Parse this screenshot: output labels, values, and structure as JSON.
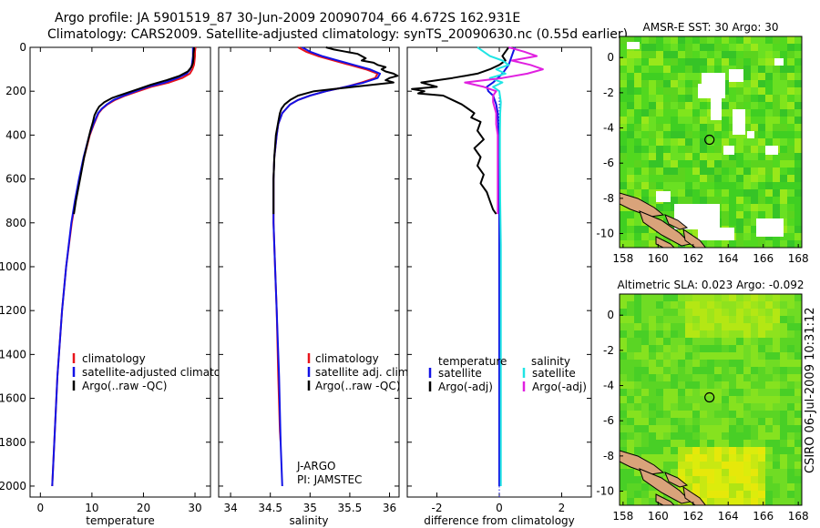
{
  "header": {
    "title_line1": "Argo profile: JA 5901519_87 30-Jun-2009 20090704_66 4.672S 162.931E",
    "title_line2": "Climatology: CARS2009. Satellite-adjusted climatology: synTS_20090630.nc (0.55d earlier)"
  },
  "footer": {
    "stamp": "CSIRO 06-Jul-2009 10:31:12"
  },
  "colors": {
    "climatology": "#e8141b",
    "satellite": "#1212e6",
    "argo": "#000000",
    "cyan": "#20e4e4",
    "magenta": "#e020e0",
    "land": "#d9a37a"
  },
  "chart_data": [
    {
      "type": "line",
      "id": "temperature",
      "xlabel": "temperature",
      "xticks": [
        0,
        10,
        20,
        30
      ],
      "xlim": [
        -2,
        33
      ],
      "yticks": [
        0,
        200,
        400,
        600,
        800,
        1000,
        1200,
        1400,
        1600,
        1800,
        2000
      ],
      "ylim": [
        2050,
        0
      ],
      "legend": [
        "climatology",
        "satellite-adjusted climatology",
        "Argo(..raw -QC)"
      ],
      "series": [
        {
          "name": "climatology",
          "color": "#e8141b",
          "depth": [
            0,
            20,
            40,
            60,
            80,
            100,
            120,
            140,
            160,
            180,
            200,
            220,
            240,
            260,
            280,
            300,
            350,
            400,
            500,
            600,
            700,
            800,
            1000,
            1200,
            1500,
            1800,
            2000
          ],
          "values": [
            30.1,
            30.0,
            30.0,
            29.9,
            29.8,
            29.5,
            29.0,
            27.5,
            25.0,
            21.5,
            19.0,
            16.5,
            14.5,
            13.0,
            12.0,
            11.3,
            10.4,
            9.6,
            8.5,
            7.6,
            6.8,
            6.1,
            5.0,
            4.2,
            3.3,
            2.7,
            2.3
          ]
        },
        {
          "name": "satellite-adjusted climatology",
          "color": "#1212e6",
          "depth": [
            0,
            20,
            40,
            60,
            80,
            100,
            120,
            140,
            160,
            180,
            200,
            220,
            240,
            260,
            280,
            300,
            350,
            400,
            500,
            600,
            700,
            800,
            1000,
            1200,
            1500,
            1800,
            2000
          ],
          "values": [
            29.6,
            29.6,
            29.6,
            29.5,
            29.4,
            29.1,
            28.4,
            26.6,
            24.2,
            20.8,
            18.5,
            16.2,
            14.2,
            12.9,
            11.9,
            11.2,
            10.3,
            9.5,
            8.4,
            7.5,
            6.7,
            6.0,
            5.0,
            4.2,
            3.3,
            2.7,
            2.3
          ]
        },
        {
          "name": "Argo(..raw -QC)",
          "color": "#000000",
          "depth": [
            0,
            10,
            30,
            50,
            70,
            90,
            110,
            130,
            150,
            170,
            190,
            210,
            230,
            250,
            270,
            290,
            310,
            340,
            380,
            420,
            500,
            600,
            700,
            760
          ],
          "values": [
            29.8,
            29.8,
            29.7,
            29.7,
            29.6,
            29.3,
            28.6,
            27.0,
            24.5,
            21.5,
            19.0,
            16.5,
            14.0,
            12.4,
            11.4,
            10.9,
            10.5,
            10.2,
            9.7,
            9.3,
            8.5,
            7.7,
            6.9,
            6.5
          ]
        }
      ]
    },
    {
      "type": "line",
      "id": "salinity",
      "xlabel": "salinity",
      "xticks": [
        34,
        34.5,
        35,
        35.5,
        36
      ],
      "xlim": [
        33.85,
        36.12
      ],
      "ylim": [
        2050,
        0
      ],
      "legend": [
        "climatology",
        "satellite adj. clim.",
        "Argo(..raw -QC)"
      ],
      "annotation": [
        "J-ARGO",
        "PI: JAMSTEC"
      ],
      "series": [
        {
          "name": "climatology",
          "color": "#e8141b",
          "depth": [
            0,
            20,
            40,
            60,
            80,
            100,
            120,
            140,
            160,
            180,
            200,
            220,
            240,
            260,
            280,
            300,
            350,
            400,
            500,
            600,
            700,
            800,
            1000,
            1200,
            1500,
            1750,
            1800
          ],
          "values": [
            34.85,
            34.95,
            35.1,
            35.3,
            35.5,
            35.7,
            35.85,
            35.82,
            35.65,
            35.45,
            35.2,
            35.0,
            34.85,
            34.75,
            34.7,
            34.65,
            34.6,
            34.58,
            34.55,
            34.54,
            34.54,
            34.54,
            34.56,
            34.58,
            34.6,
            34.62,
            34.63
          ]
        },
        {
          "name": "satellite adj. clim.",
          "color": "#1212e6",
          "depth": [
            0,
            20,
            40,
            60,
            80,
            100,
            120,
            140,
            160,
            180,
            200,
            220,
            240,
            260,
            280,
            300,
            350,
            400,
            500,
            600,
            700,
            800,
            1000,
            1200,
            1500,
            1800,
            2000
          ],
          "values": [
            34.9,
            35.0,
            35.15,
            35.35,
            35.55,
            35.75,
            35.88,
            35.85,
            35.68,
            35.45,
            35.2,
            35.0,
            34.85,
            34.75,
            34.7,
            34.65,
            34.6,
            34.58,
            34.55,
            34.54,
            34.54,
            34.54,
            34.56,
            34.58,
            34.61,
            34.63,
            34.65
          ]
        },
        {
          "name": "Argo(..raw -QC)",
          "color": "#000000",
          "depth": [
            0,
            10,
            20,
            30,
            40,
            50,
            60,
            70,
            80,
            90,
            100,
            110,
            120,
            130,
            140,
            150,
            160,
            170,
            180,
            190,
            200,
            220,
            240,
            260,
            280,
            300,
            340,
            400,
            500,
            600,
            700,
            760
          ],
          "values": [
            35.2,
            35.3,
            35.45,
            35.6,
            35.65,
            35.7,
            35.65,
            35.8,
            35.85,
            35.95,
            35.9,
            35.95,
            36.05,
            36.1,
            36.0,
            35.95,
            36.05,
            35.8,
            35.55,
            35.3,
            35.05,
            34.85,
            34.75,
            34.68,
            34.64,
            34.62,
            34.6,
            34.57,
            34.55,
            34.54,
            34.54,
            34.54
          ]
        }
      ]
    },
    {
      "type": "line",
      "id": "difference",
      "xlabel": "difference from climatology",
      "xticks": [
        -2,
        0,
        2
      ],
      "xlim": [
        -2.95,
        2.95
      ],
      "ylim": [
        2050,
        0
      ],
      "legend": {
        "temperature_header": "temperature",
        "salinity_header": "salinity",
        "items": [
          "satellite",
          "Argo(-adj)",
          "satellite",
          "Argo(-adj)"
        ]
      },
      "series": [
        {
          "name": "satellite",
          "group": "temperature",
          "color": "#1212e6",
          "depth": [
            0,
            40,
            80,
            120,
            160,
            180,
            200,
            220,
            260,
            300,
            400,
            500,
            600,
            700,
            800,
            1000,
            1200,
            1500,
            1800,
            2000
          ],
          "values": [
            0.5,
            0.4,
            0.3,
            0.1,
            -0.2,
            -0.4,
            -0.35,
            -0.2,
            -0.1,
            -0.05,
            -0.02,
            0.0,
            0.0,
            0.0,
            0.0,
            0.0,
            0.0,
            0.0,
            0.0,
            0.0
          ]
        },
        {
          "name": "Argo(-adj)",
          "group": "temperature",
          "color": "#000000",
          "depth": [
            0,
            20,
            40,
            60,
            80,
            100,
            120,
            140,
            160,
            180,
            190,
            200,
            210,
            220,
            240,
            260,
            280,
            300,
            320,
            340,
            380,
            420,
            460,
            500,
            540,
            580,
            620,
            660,
            700,
            740,
            760
          ],
          "values": [
            0.3,
            0.2,
            0.1,
            0.2,
            0.0,
            -0.3,
            -0.7,
            -1.5,
            -2.5,
            -2.0,
            -2.8,
            -2.4,
            -2.6,
            -1.8,
            -1.5,
            -1.2,
            -1.0,
            -0.8,
            -0.9,
            -0.6,
            -0.7,
            -0.5,
            -0.8,
            -0.6,
            -0.7,
            -0.5,
            -0.6,
            -0.4,
            -0.3,
            -0.2,
            -0.1
          ]
        },
        {
          "name": "satellite",
          "group": "salinity",
          "color": "#20e4e4",
          "depth": [
            0,
            20,
            40,
            60,
            80,
            100,
            120,
            140,
            160,
            180,
            200,
            250,
            300,
            400,
            500,
            700,
            900,
            1200,
            1500,
            1800,
            2000
          ],
          "values": [
            -0.7,
            -0.5,
            -0.3,
            0.1,
            0.3,
            -0.1,
            0.2,
            -0.3,
            0.1,
            -0.2,
            0.0,
            0.05,
            0.03,
            0.02,
            0.02,
            0.03,
            0.05,
            0.05,
            0.05,
            0.05,
            0.05
          ]
        },
        {
          "name": "Argo(-adj)",
          "group": "salinity",
          "color": "#e020e0",
          "depth": [
            0,
            20,
            40,
            60,
            80,
            100,
            120,
            140,
            160,
            180,
            200,
            220,
            250,
            300,
            350,
            400,
            500,
            600,
            700,
            760
          ],
          "values": [
            0.3,
            0.8,
            1.2,
            0.4,
            1.0,
            1.4,
            0.9,
            0.1,
            -1.1,
            -0.5,
            -0.1,
            -0.2,
            -0.2,
            -0.1,
            -0.1,
            -0.05,
            -0.05,
            -0.05,
            -0.05,
            -0.05
          ]
        }
      ]
    },
    {
      "type": "heatmap",
      "id": "sst-map",
      "title": "AMSR-E SST: 30 Argo: 30",
      "xticks": [
        158,
        160,
        162,
        164,
        166,
        168
      ],
      "yticks": [
        0,
        -2,
        -4,
        -6,
        -8,
        -10
      ],
      "xlim": [
        157.8,
        168.2
      ],
      "ylim": [
        -10.8,
        1.2
      ],
      "float_position": {
        "lon": 162.931,
        "lat": -4.672
      }
    },
    {
      "type": "heatmap",
      "id": "sla-map",
      "title": "Altimetric SLA: 0.023 Argo: -0.092",
      "xticks": [
        158,
        160,
        162,
        164,
        166,
        168
      ],
      "yticks": [
        0,
        -2,
        -4,
        -6,
        -8,
        -10
      ],
      "xlim": [
        157.8,
        168.2
      ],
      "ylim": [
        -10.8,
        1.2
      ],
      "float_position": {
        "lon": 162.931,
        "lat": -4.672
      }
    }
  ]
}
